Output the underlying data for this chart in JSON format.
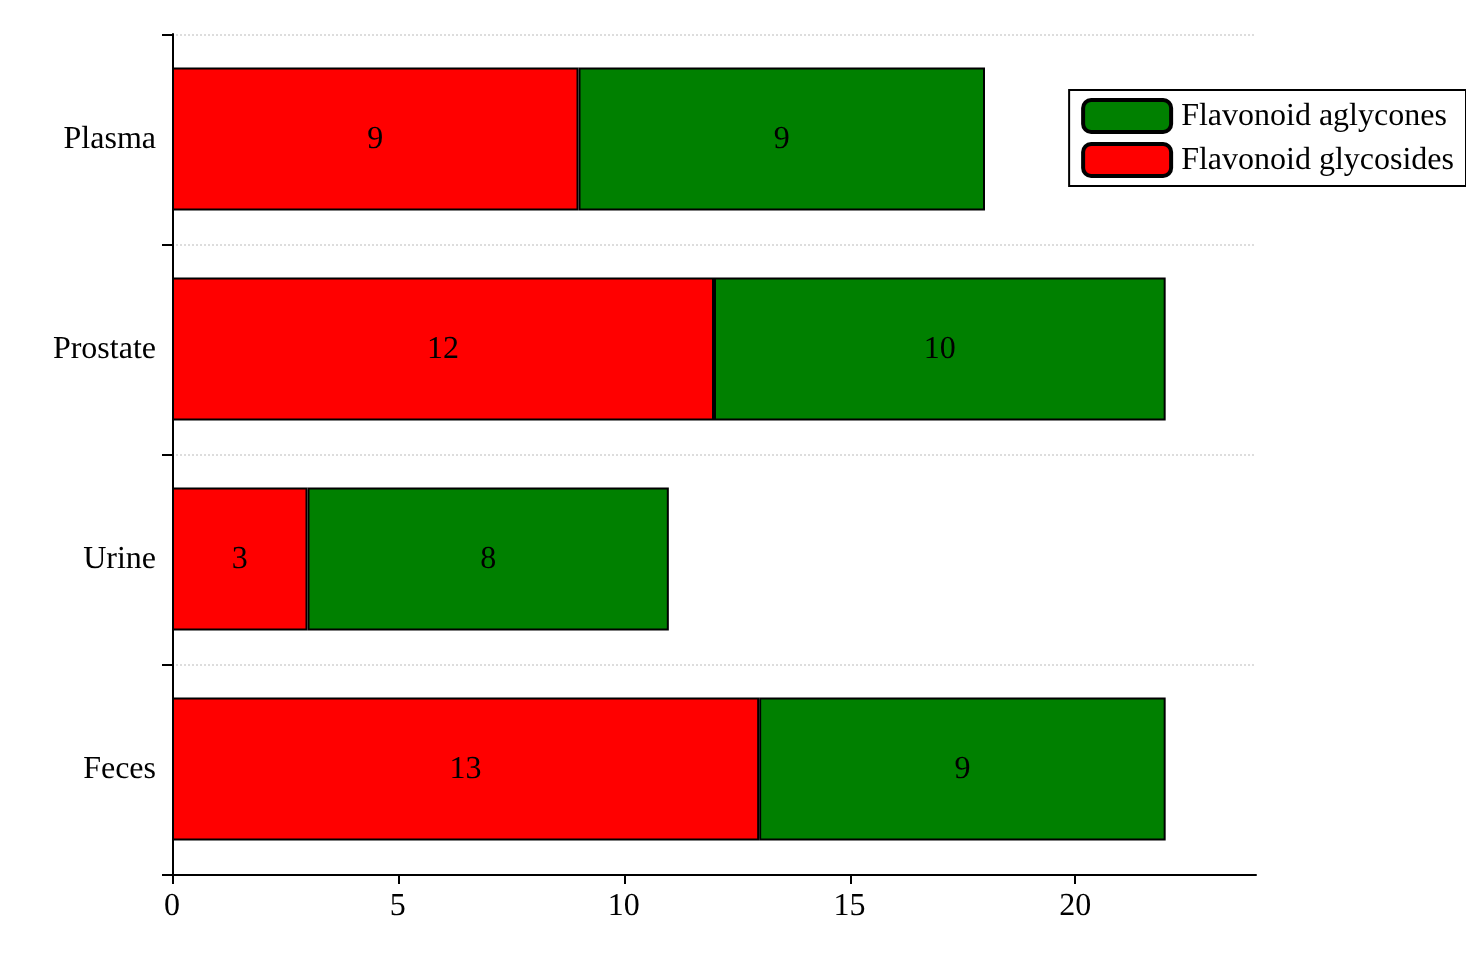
{
  "chart_data": {
    "type": "bar",
    "orientation": "horizontal",
    "stacked": true,
    "categories": [
      "Plasma",
      "Prostate",
      "Urine",
      "Feces"
    ],
    "series": [
      {
        "name": "Flavonoid glycosides",
        "color": "#ff0000",
        "values": [
          9,
          12,
          3,
          13
        ]
      },
      {
        "name": "Flavonoid aglycones",
        "color": "#008000",
        "values": [
          9,
          10,
          8,
          9
        ]
      }
    ],
    "xlim": [
      0,
      24
    ],
    "xticks": [
      0,
      5,
      10,
      15,
      20
    ],
    "data_labels": true,
    "grid": "y",
    "legend": "top right"
  }
}
